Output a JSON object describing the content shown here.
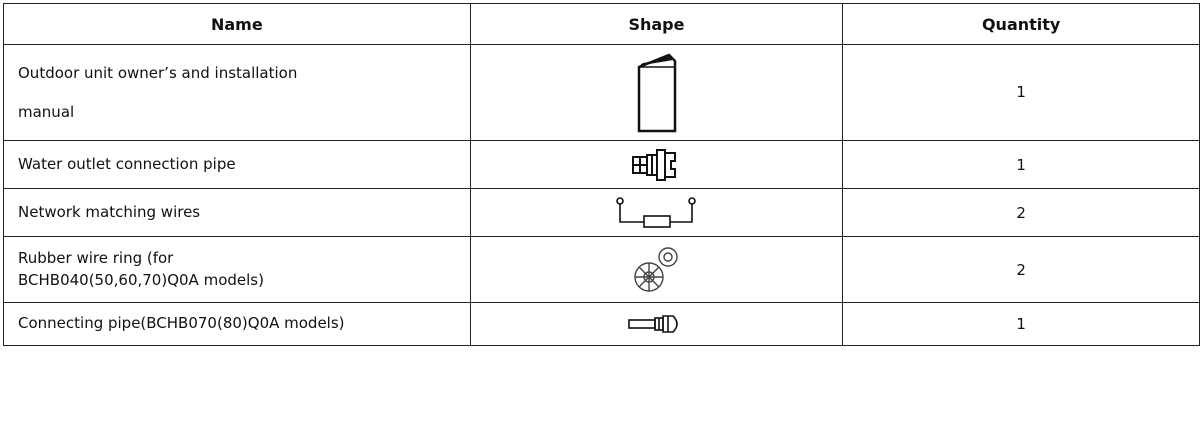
{
  "table": {
    "header": [
      "Name",
      "Shape",
      "Quantity"
    ],
    "rows": [
      [
        "Outdoor unit owner’s and installation\nmanual",
        1
      ],
      [
        "Water outlet connection pipe",
        1
      ],
      [
        "Network matching wires",
        2
      ],
      [
        "Rubber wire ring (for\nBCHB040(50,60,70)Q0A models)",
        2
      ],
      [
        "Connecting pipe(BCHB070(80)Q0A models)",
        1
      ]
    ]
  }
}
